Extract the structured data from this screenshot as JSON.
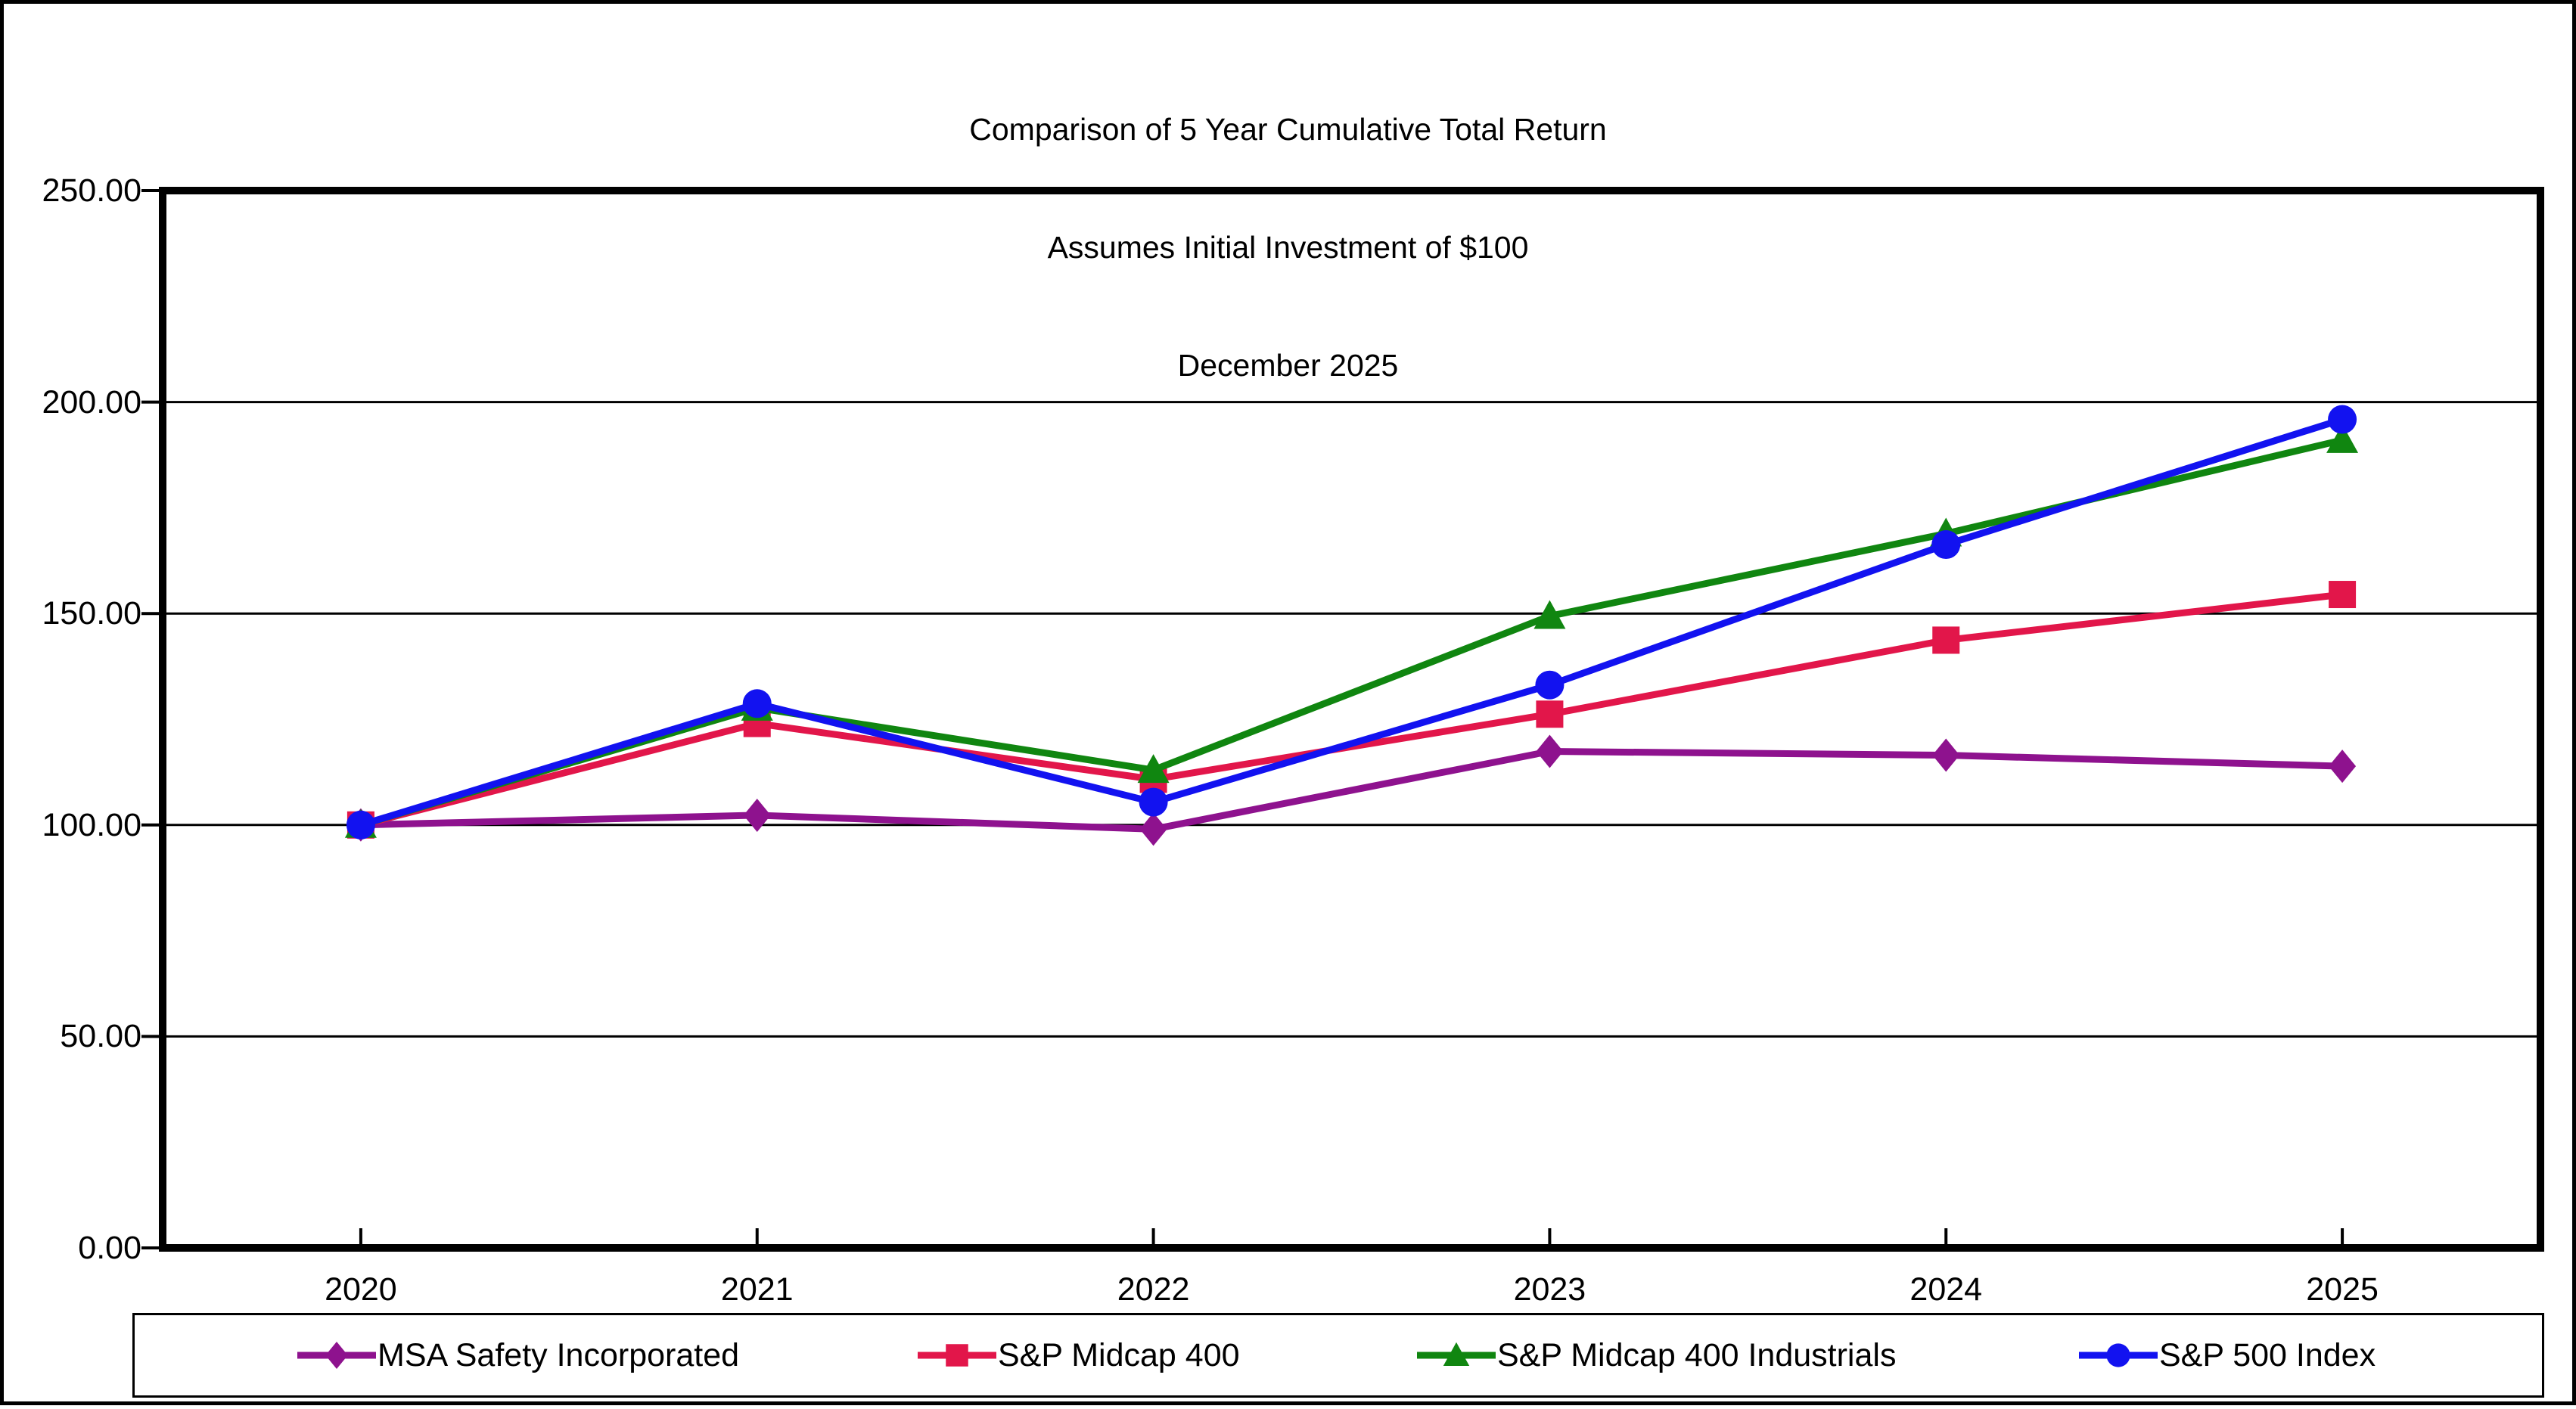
{
  "chart_data": {
    "type": "line",
    "title": "Comparison of 5 Year Cumulative Total Return",
    "subtitle": "Assumes Initial Investment of $100",
    "date_line": "December 2025",
    "title_lines": [
      "Comparison of 5 Year Cumulative Total Return",
      "Assumes Initial Investment of $100",
      "December 2025"
    ],
    "categories": [
      "2020",
      "2021",
      "2022",
      "2023",
      "2024",
      "2025"
    ],
    "series": [
      {
        "name": "MSA Safety Incorporated",
        "marker": "diamond",
        "color": "#8E128E",
        "values": [
          100.0,
          102.3,
          99.0,
          117.4,
          116.5,
          113.9
        ]
      },
      {
        "name": "S&P Midcap 400",
        "marker": "square",
        "color": "#E2164A",
        "values": [
          100.0,
          124.0,
          110.8,
          126.2,
          143.7,
          154.5
        ]
      },
      {
        "name": "S&P Midcap 400 Industrials",
        "marker": "triangle",
        "color": "#108610",
        "values": [
          100.0,
          127.7,
          113.0,
          149.4,
          168.9,
          191.0
        ]
      },
      {
        "name": "S&P 500 Index",
        "marker": "circle",
        "color": "#1212F0",
        "values": [
          100.0,
          128.7,
          105.4,
          133.1,
          166.3,
          195.9
        ]
      }
    ],
    "ylim": [
      0,
      250
    ],
    "ytick_step": 50,
    "ytick_labels": [
      "0.00",
      "50.00",
      "100.00",
      "150.00",
      "200.00",
      "250.00"
    ],
    "grid": "horizontal",
    "legend_position": "bottom",
    "axis_color": "#000000",
    "background_color": "#FFFFFF"
  }
}
